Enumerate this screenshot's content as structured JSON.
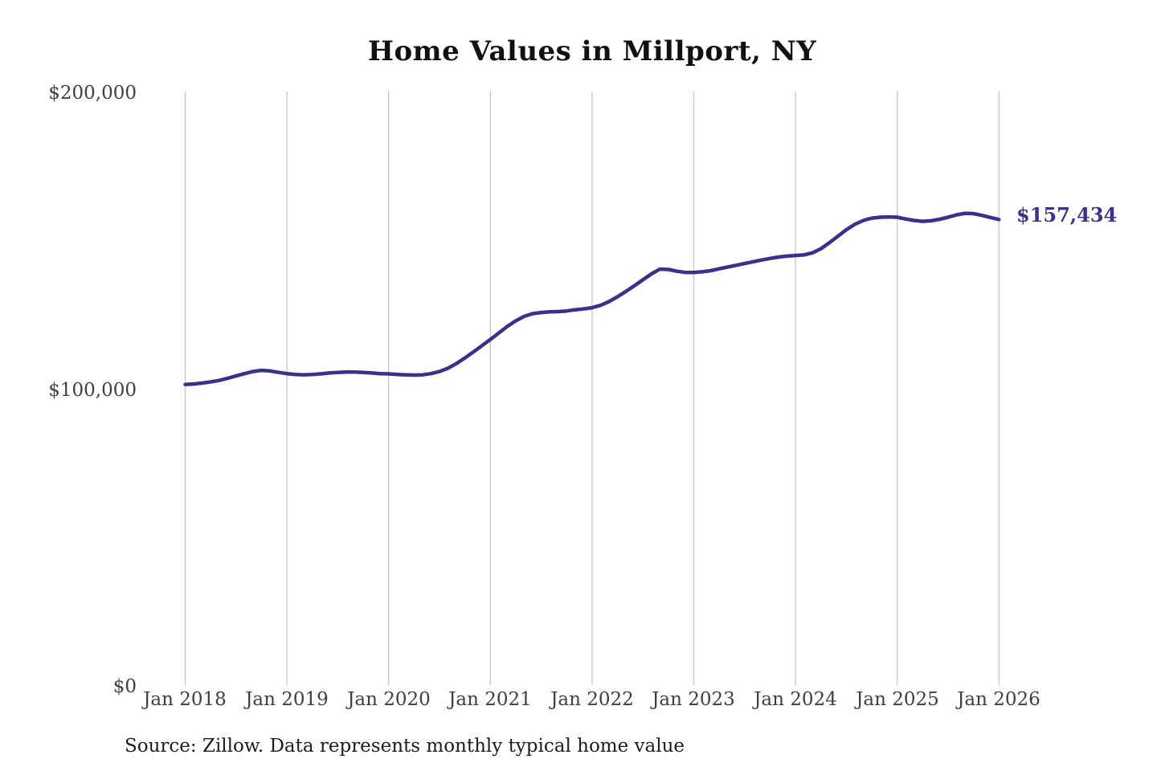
{
  "chart_data": {
    "type": "line",
    "title": "Home Values in Millport, NY",
    "x_tick_labels": [
      "Jan 2018",
      "Jan 2019",
      "Jan 2020",
      "Jan 2021",
      "Jan 2022",
      "Jan 2023",
      "Jan 2024",
      "Jan 2025",
      "Jan 2026"
    ],
    "y_ticks": [
      {
        "value": 0,
        "label": "$0"
      },
      {
        "value": 100000,
        "label": "$100,000"
      },
      {
        "value": 200000,
        "label": "$200,000"
      }
    ],
    "ylim": [
      0,
      200000
    ],
    "grid": "vertical-only",
    "legend": "none",
    "line_color": "#3a318c",
    "gridline_color": "#c6c6c6",
    "end_label": "$157,434",
    "end_value": 157434,
    "x_frequency": "monthly",
    "x_range": [
      "Jan 2018",
      "Jan 2026"
    ],
    "values": [
      101800,
      102000,
      102300,
      102700,
      103200,
      103900,
      104700,
      105500,
      106200,
      106600,
      106400,
      105900,
      105500,
      105200,
      105100,
      105200,
      105400,
      105700,
      105900,
      106000,
      106000,
      105900,
      105700,
      105500,
      105400,
      105200,
      105100,
      105000,
      105100,
      105500,
      106200,
      107300,
      108900,
      110800,
      112800,
      114900,
      117000,
      119200,
      121400,
      123300,
      124800,
      125700,
      126100,
      126300,
      126400,
      126600,
      127000,
      127300,
      127700,
      128500,
      129800,
      131400,
      133200,
      135100,
      137100,
      139100,
      140700,
      140600,
      140000,
      139600,
      139600,
      139800,
      140200,
      140800,
      141400,
      142000,
      142600,
      143200,
      143800,
      144300,
      144800,
      145100,
      145300,
      145500,
      146200,
      147600,
      149600,
      151800,
      154000,
      155800,
      157100,
      157900,
      158200,
      158300,
      158200,
      157600,
      157100,
      156800,
      157000,
      157500,
      158200,
      159000,
      159500,
      159400,
      158800,
      158100,
      157434
    ],
    "source_note": "Source: Zillow. Data represents monthly typical home value"
  }
}
